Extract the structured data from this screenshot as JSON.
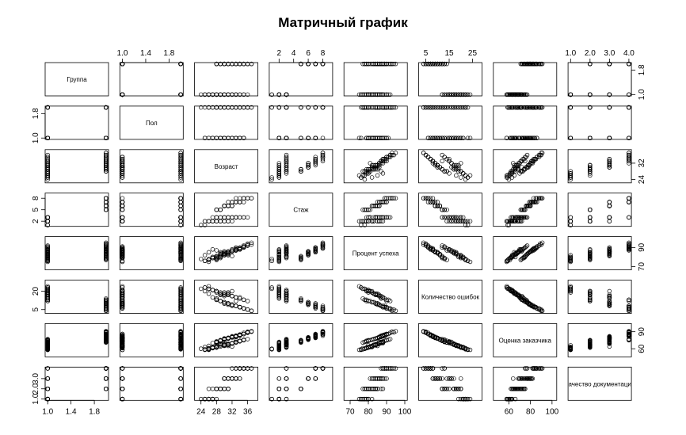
{
  "chart_data": {
    "type": "scatter-matrix",
    "title": "Матричный график",
    "variables": [
      {
        "name": "Группа",
        "range": [
          1,
          2
        ],
        "ticks": [
          1.0,
          1.4,
          1.8
        ],
        "tick_labels": [
          "1.0",
          "1.4",
          "1.8"
        ]
      },
      {
        "name": "Пол",
        "range": [
          1,
          2
        ],
        "ticks": [
          1.0,
          1.8
        ],
        "tick_labels": [
          "1.0",
          "1.8"
        ]
      },
      {
        "name": "Возраст",
        "range": [
          23,
          38
        ],
        "ticks": [
          24,
          28,
          32,
          36
        ],
        "tick_labels": [
          "24",
          "28",
          "32",
          "36"
        ]
      },
      {
        "name": "Стаж",
        "range": [
          1,
          9
        ],
        "ticks": [
          2,
          4,
          5,
          6,
          8
        ],
        "tick_labels": [
          "2",
          "4",
          "5",
          "6",
          "8"
        ]
      },
      {
        "name": "Процент успеха",
        "range": [
          68,
          100
        ],
        "ticks": [
          70,
          80,
          90,
          100
        ],
        "tick_labels": [
          "70",
          "80",
          "90",
          "100"
        ]
      },
      {
        "name": "Количество ошибок",
        "range": [
          3,
          28
        ],
        "ticks": [
          5,
          15,
          20,
          25
        ],
        "tick_labels": [
          "5",
          "15",
          "20",
          "25"
        ]
      },
      {
        "name": "Оценка заказчика",
        "range": [
          48,
          102
        ],
        "ticks": [
          60,
          80,
          90,
          100
        ],
        "tick_labels": [
          "60",
          "80",
          "90",
          "100"
        ]
      },
      {
        "name": "Качество документации",
        "range": [
          1,
          4
        ],
        "ticks": [
          1.0,
          2.0,
          3.0,
          4.0
        ],
        "tick_labels": [
          "1.0",
          "2.0",
          "3.0",
          "4.0"
        ]
      }
    ],
    "axis_labels_top": [
      {
        "var": 1,
        "ticks": [
          "1.0",
          "1.4",
          "1.8"
        ],
        "values": [
          1.0,
          1.4,
          1.8
        ]
      },
      {
        "var": 3,
        "ticks": [
          "2",
          "4",
          "6",
          "8"
        ],
        "values": [
          2,
          4,
          6,
          8
        ]
      },
      {
        "var": 5,
        "ticks": [
          "5",
          "15",
          "25"
        ],
        "values": [
          5,
          15,
          25
        ]
      },
      {
        "var": 7,
        "ticks": [
          "1.0",
          "2.0",
          "3.0",
          "4.0"
        ],
        "values": [
          1.0,
          2.0,
          3.0,
          4.0
        ]
      }
    ],
    "axis_labels_bottom": [
      {
        "var": 0,
        "ticks": [
          "1.0",
          "1.4",
          "1.8"
        ],
        "values": [
          1.0,
          1.4,
          1.8
        ]
      },
      {
        "var": 2,
        "ticks": [
          "24",
          "28",
          "32",
          "36"
        ],
        "values": [
          24,
          28,
          32,
          36
        ]
      },
      {
        "var": 4,
        "ticks": [
          "70",
          "80",
          "90",
          "100"
        ],
        "values": [
          70,
          80,
          90,
          100
        ]
      },
      {
        "var": 6,
        "ticks": [
          "60",
          "80",
          "100"
        ],
        "values": [
          60,
          80,
          100
        ]
      }
    ],
    "axis_labels_left": [
      {
        "var": 1,
        "ticks": [
          "1.0",
          "1.8"
        ],
        "values": [
          1.0,
          1.8
        ]
      },
      {
        "var": 3,
        "ticks": [
          "2",
          "5",
          "8"
        ],
        "values": [
          2,
          5,
          8
        ]
      },
      {
        "var": 5,
        "ticks": [
          "5",
          "20"
        ],
        "values": [
          5,
          20
        ]
      },
      {
        "var": 7,
        "ticks": [
          "1.0",
          "2.0",
          "3.0"
        ],
        "values": [
          1.0,
          2.0,
          3.0
        ]
      }
    ],
    "axis_labels_right": [
      {
        "var": 0,
        "ticks": [
          "1.0",
          "1.8"
        ],
        "values": [
          1.0,
          1.8
        ]
      },
      {
        "var": 2,
        "ticks": [
          "24",
          "32"
        ],
        "values": [
          24,
          32
        ]
      },
      {
        "var": 4,
        "ticks": [
          "70",
          "90"
        ],
        "values": [
          70,
          90
        ]
      },
      {
        "var": 6,
        "ticks": [
          "60",
          "90"
        ],
        "values": [
          60,
          90
        ]
      }
    ],
    "observations": [
      [
        1,
        1,
        25,
        2,
        82,
        20,
        63,
        1
      ],
      [
        1,
        1,
        26,
        2,
        85,
        18,
        65,
        2
      ],
      [
        1,
        2,
        24,
        1,
        78,
        22,
        60,
        1
      ],
      [
        1,
        1,
        27,
        2,
        88,
        15,
        70,
        2
      ],
      [
        1,
        2,
        28,
        3,
        80,
        19,
        66,
        1
      ],
      [
        1,
        1,
        26,
        2,
        75,
        24,
        58,
        1
      ],
      [
        1,
        2,
        29,
        3,
        84,
        17,
        68,
        2
      ],
      [
        1,
        1,
        30,
        2,
        86,
        16,
        72,
        3
      ],
      [
        1,
        2,
        27,
        3,
        79,
        21,
        62,
        1
      ],
      [
        1,
        1,
        31,
        3,
        83,
        18,
        67,
        2
      ],
      [
        1,
        2,
        28,
        2,
        87,
        14,
        71,
        2
      ],
      [
        1,
        1,
        32,
        3,
        81,
        20,
        64,
        3
      ],
      [
        1,
        2,
        25,
        1,
        76,
        23,
        59,
        1
      ],
      [
        1,
        1,
        29,
        3,
        85,
        17,
        69,
        2
      ],
      [
        1,
        2,
        33,
        3,
        90,
        12,
        75,
        3
      ],
      [
        1,
        1,
        30,
        2,
        82,
        19,
        65,
        2
      ],
      [
        1,
        2,
        26,
        2,
        77,
        22,
        61,
        1
      ],
      [
        1,
        1,
        34,
        3,
        88,
        15,
        73,
        3
      ],
      [
        1,
        2,
        31,
        3,
        84,
        18,
        67,
        2
      ],
      [
        1,
        1,
        27,
        2,
        80,
        21,
        63,
        1
      ],
      [
        1,
        2,
        32,
        3,
        86,
        16,
        70,
        3
      ],
      [
        1,
        1,
        28,
        2,
        79,
        20,
        62,
        2
      ],
      [
        1,
        2,
        35,
        3,
        91,
        13,
        76,
        4
      ],
      [
        1,
        1,
        29,
        2,
        83,
        18,
        66,
        2
      ],
      [
        1,
        2,
        30,
        3,
        85,
        17,
        68,
        2
      ],
      [
        1,
        1,
        33,
        3,
        87,
        15,
        72,
        3
      ],
      [
        1,
        2,
        26,
        2,
        78,
        22,
        60,
        1
      ],
      [
        1,
        1,
        31,
        2,
        82,
        19,
        65,
        2
      ],
      [
        1,
        2,
        28,
        3,
        81,
        20,
        64,
        2
      ],
      [
        1,
        1,
        34,
        3,
        89,
        14,
        74,
        3
      ],
      [
        1,
        2,
        27,
        2,
        80,
        21,
        62,
        1
      ],
      [
        1,
        1,
        30,
        3,
        84,
        17,
        67,
        2
      ],
      [
        1,
        2,
        32,
        2,
        86,
        16,
        69,
        3
      ],
      [
        1,
        1,
        25,
        2,
        76,
        23,
        58,
        1
      ],
      [
        1,
        2,
        33,
        3,
        88,
        15,
        71,
        3
      ],
      [
        1,
        1,
        29,
        2,
        83,
        18,
        66,
        2
      ],
      [
        1,
        2,
        36,
        3,
        92,
        12,
        77,
        4
      ],
      [
        1,
        1,
        28,
        3,
        81,
        20,
        63,
        2
      ],
      [
        1,
        2,
        31,
        2,
        85,
        17,
        68,
        2
      ],
      [
        1,
        1,
        27,
        2,
        79,
        21,
        61,
        1
      ],
      [
        1,
        2,
        30,
        3,
        84,
        18,
        66,
        2
      ],
      [
        1,
        1,
        32,
        3,
        87,
        16,
        70,
        3
      ],
      [
        1,
        2,
        26,
        2,
        77,
        22,
        59,
        1
      ],
      [
        1,
        1,
        35,
        3,
        90,
        13,
        75,
        4
      ],
      [
        1,
        2,
        29,
        2,
        82,
        19,
        64,
        2
      ],
      [
        1,
        1,
        31,
        3,
        86,
        17,
        69,
        3
      ],
      [
        1,
        2,
        28,
        2,
        80,
        20,
        63,
        2
      ],
      [
        1,
        1,
        33,
        3,
        88,
        15,
        72,
        3
      ],
      [
        2,
        1,
        30,
        6,
        84,
        10,
        78,
        3
      ],
      [
        2,
        2,
        32,
        7,
        88,
        8,
        82,
        4
      ],
      [
        2,
        1,
        29,
        5,
        80,
        12,
        75,
        2
      ],
      [
        2,
        2,
        34,
        7,
        90,
        7,
        85,
        4
      ],
      [
        2,
        1,
        31,
        6,
        85,
        9,
        79,
        3
      ],
      [
        2,
        2,
        28,
        5,
        78,
        13,
        72,
        2
      ],
      [
        2,
        1,
        33,
        7,
        87,
        8,
        83,
        4
      ],
      [
        2,
        2,
        35,
        8,
        92,
        6,
        88,
        4
      ],
      [
        2,
        1,
        30,
        6,
        83,
        11,
        77,
        3
      ],
      [
        2,
        2,
        36,
        8,
        93,
        5,
        90,
        4
      ],
      [
        2,
        1,
        32,
        6,
        86,
        9,
        80,
        3
      ],
      [
        2,
        2,
        29,
        5,
        79,
        12,
        74,
        2
      ],
      [
        2,
        1,
        34,
        7,
        89,
        7,
        84,
        4
      ],
      [
        2,
        2,
        31,
        6,
        84,
        10,
        78,
        3
      ],
      [
        2,
        1,
        33,
        7,
        87,
        8,
        81,
        3
      ],
      [
        2,
        2,
        30,
        6,
        82,
        11,
        76,
        3
      ],
      [
        2,
        1,
        35,
        8,
        91,
        6,
        86,
        4
      ],
      [
        2,
        2,
        28,
        5,
        77,
        14,
        71,
        2
      ],
      [
        2,
        1,
        32,
        7,
        86,
        9,
        80,
        3
      ],
      [
        2,
        2,
        34,
        7,
        89,
        7,
        83,
        4
      ],
      [
        2,
        1,
        31,
        6,
        85,
        10,
        79,
        3
      ],
      [
        2,
        2,
        36,
        8,
        94,
        5,
        89,
        4
      ],
      [
        2,
        1,
        29,
        5,
        80,
        12,
        74,
        2
      ],
      [
        2,
        2,
        33,
        7,
        88,
        8,
        82,
        4
      ],
      [
        2,
        1,
        30,
        6,
        83,
        11,
        77,
        3
      ],
      [
        2,
        2,
        35,
        8,
        90,
        6,
        86,
        4
      ],
      [
        2,
        1,
        32,
        6,
        86,
        9,
        80,
        3
      ],
      [
        2,
        2,
        31,
        7,
        85,
        10,
        79,
        3
      ],
      [
        2,
        1,
        34,
        7,
        88,
        7,
        84,
        4
      ],
      [
        2,
        2,
        28,
        5,
        78,
        13,
        72,
        2
      ],
      [
        2,
        1,
        33,
        7,
        87,
        8,
        81,
        3
      ],
      [
        2,
        2,
        37,
        8,
        95,
        4,
        91,
        4
      ],
      [
        2,
        1,
        30,
        6,
        84,
        10,
        78,
        3
      ],
      [
        2,
        2,
        32,
        6,
        86,
        9,
        80,
        3
      ],
      [
        2,
        1,
        29,
        5,
        81,
        12,
        75,
        2
      ],
      [
        2,
        2,
        34,
        8,
        89,
        7,
        85,
        4
      ],
      [
        2,
        1,
        31,
        6,
        85,
        10,
        79,
        3
      ],
      [
        2,
        2,
        36,
        8,
        92,
        5,
        88,
        4
      ],
      [
        2,
        1,
        33,
        7,
        87,
        8,
        82,
        3
      ],
      [
        2,
        2,
        30,
        6,
        83,
        11,
        77,
        3
      ],
      [
        2,
        1,
        35,
        7,
        90,
        6,
        86,
        4
      ],
      [
        2,
        2,
        32,
        7,
        86,
        9,
        81,
        3
      ],
      [
        2,
        1,
        28,
        5,
        79,
        13,
        73,
        2
      ],
      [
        2,
        2,
        34,
        7,
        88,
        7,
        84,
        4
      ],
      [
        2,
        1,
        31,
        6,
        84,
        10,
        78,
        3
      ],
      [
        2,
        2,
        33,
        8,
        89,
        8,
        83,
        4
      ],
      [
        2,
        1,
        30,
        6,
        82,
        11,
        76,
        3
      ],
      [
        2,
        2,
        37,
        8,
        93,
        4,
        90,
        4
      ]
    ]
  }
}
